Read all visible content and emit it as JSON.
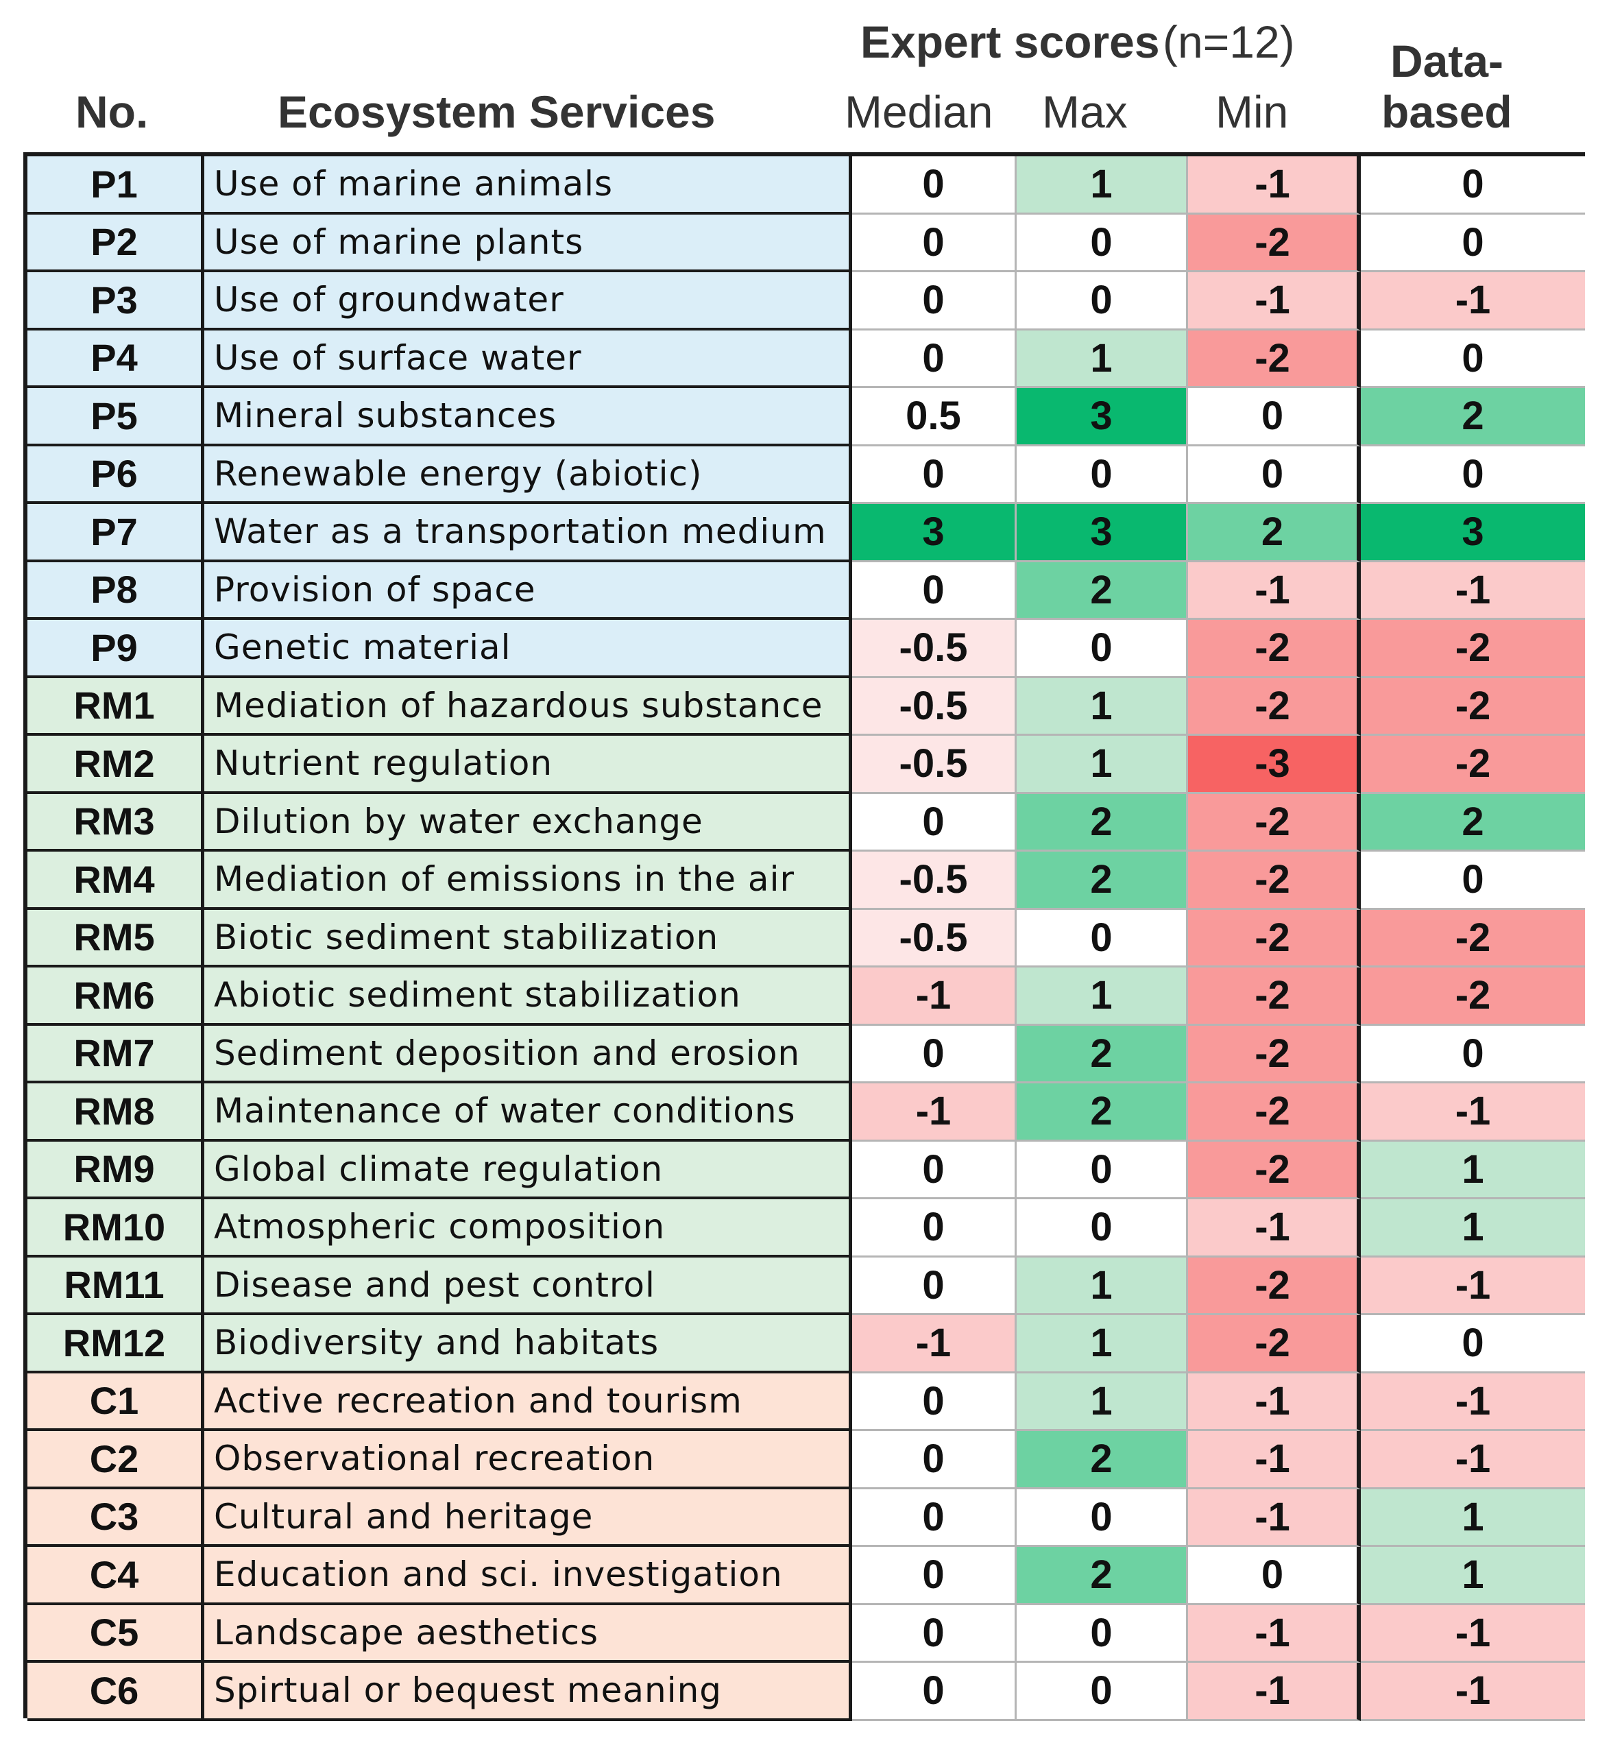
{
  "header": {
    "no_label": "No.",
    "service_label": "Ecosystem Services",
    "expert_label": "Expert scores",
    "expert_n": "(n=12)",
    "median_label": "Median",
    "max_label": "Max",
    "min_label": "Min",
    "data_label_1": "Data-",
    "data_label_2": "based"
  },
  "colors": {
    "provisioning_bg": "#dbeef8",
    "regulating_bg": "#dcefdf",
    "cultural_bg": "#fde3d6",
    "score_3": "#09b86f",
    "score_2": "#6dd2a2",
    "score_1": "#bfe6cf",
    "score_0": "#ffffff",
    "score_-0.5": "#fde6e6",
    "score_-1": "#fbcaca",
    "score_-2": "#f99a9a",
    "score_-3": "#f76363"
  },
  "chart_data": {
    "type": "table",
    "columns": [
      "No.",
      "Ecosystem Services",
      "Median",
      "Max",
      "Min",
      "Data-based"
    ],
    "rows": [
      {
        "no": "P1",
        "service": "Use of marine animals",
        "median": "0",
        "max": "1",
        "min": "-1",
        "data": "0",
        "group": "P"
      },
      {
        "no": "P2",
        "service": "Use of marine plants",
        "median": "0",
        "max": "0",
        "min": "-2",
        "data": "0",
        "group": "P"
      },
      {
        "no": "P3",
        "service": "Use of groundwater",
        "median": "0",
        "max": "0",
        "min": "-1",
        "data": "-1",
        "group": "P"
      },
      {
        "no": "P4",
        "service": "Use of surface water",
        "median": "0",
        "max": "1",
        "min": "-2",
        "data": "0",
        "group": "P"
      },
      {
        "no": "P5",
        "service": "Mineral substances",
        "median": "0.5",
        "max": "3",
        "min": "0",
        "data": "2",
        "group": "P"
      },
      {
        "no": "P6",
        "service": "Renewable energy (abiotic)",
        "median": "0",
        "max": "0",
        "min": "0",
        "data": "0",
        "group": "P"
      },
      {
        "no": "P7",
        "service": "Water as a transportation medium",
        "median": "3",
        "max": "3",
        "min": "2",
        "data": "3",
        "group": "P"
      },
      {
        "no": "P8",
        "service": "Provision of space",
        "median": "0",
        "max": "2",
        "min": "-1",
        "data": "-1",
        "group": "P"
      },
      {
        "no": "P9",
        "service": "Genetic material",
        "median": "-0.5",
        "max": "0",
        "min": "-2",
        "data": "-2",
        "group": "P"
      },
      {
        "no": "RM1",
        "service": "Mediation of hazardous substance",
        "median": "-0.5",
        "max": "1",
        "min": "-2",
        "data": "-2",
        "group": "RM"
      },
      {
        "no": "RM2",
        "service": "Nutrient regulation",
        "median": "-0.5",
        "max": "1",
        "min": "-3",
        "data": "-2",
        "group": "RM"
      },
      {
        "no": "RM3",
        "service": "Dilution by water exchange",
        "median": "0",
        "max": "2",
        "min": "-2",
        "data": "2",
        "group": "RM"
      },
      {
        "no": "RM4",
        "service": "Mediation of emissions in the air",
        "median": "-0.5",
        "max": "2",
        "min": "-2",
        "data": "0",
        "group": "RM"
      },
      {
        "no": "RM5",
        "service": "Biotic sediment stabilization",
        "median": "-0.5",
        "max": "0",
        "min": "-2",
        "data": "-2",
        "group": "RM"
      },
      {
        "no": "RM6",
        "service": "Abiotic sediment stabilization",
        "median": "-1",
        "max": "1",
        "min": "-2",
        "data": "-2",
        "group": "RM"
      },
      {
        "no": "RM7",
        "service": "Sediment deposition and erosion",
        "median": "0",
        "max": "2",
        "min": "-2",
        "data": "0",
        "group": "RM"
      },
      {
        "no": "RM8",
        "service": "Maintenance of water conditions",
        "median": "-1",
        "max": "2",
        "min": "-2",
        "data": "-1",
        "group": "RM"
      },
      {
        "no": "RM9",
        "service": "Global climate regulation",
        "median": "0",
        "max": "0",
        "min": "-2",
        "data": "1",
        "group": "RM"
      },
      {
        "no": "RM10",
        "service": "Atmospheric composition",
        "median": "0",
        "max": "0",
        "min": "-1",
        "data": "1",
        "group": "RM"
      },
      {
        "no": "RM11",
        "service": "Disease and pest control",
        "median": "0",
        "max": "1",
        "min": "-2",
        "data": "-1",
        "group": "RM"
      },
      {
        "no": "RM12",
        "service": "Biodiversity and habitats",
        "median": "-1",
        "max": "1",
        "min": "-2",
        "data": "0",
        "group": "RM"
      },
      {
        "no": "C1",
        "service": "Active recreation and tourism",
        "median": "0",
        "max": "1",
        "min": "-1",
        "data": "-1",
        "group": "C"
      },
      {
        "no": "C2",
        "service": "Observational recreation",
        "median": "0",
        "max": "2",
        "min": "-1",
        "data": "-1",
        "group": "C"
      },
      {
        "no": "C3",
        "service": "Cultural and heritage",
        "median": "0",
        "max": "0",
        "min": "-1",
        "data": "1",
        "group": "C"
      },
      {
        "no": "C4",
        "service": "Education and sci. investigation",
        "median": "0",
        "max": "2",
        "min": "0",
        "data": "1",
        "group": "C"
      },
      {
        "no": "C5",
        "service": "Landscape aesthetics",
        "median": "0",
        "max": "0",
        "min": "-1",
        "data": "-1",
        "group": "C"
      },
      {
        "no": "C6",
        "service": "Spirtual or bequest meaning",
        "median": "0",
        "max": "0",
        "min": "-1",
        "data": "-1",
        "group": "C"
      }
    ]
  }
}
